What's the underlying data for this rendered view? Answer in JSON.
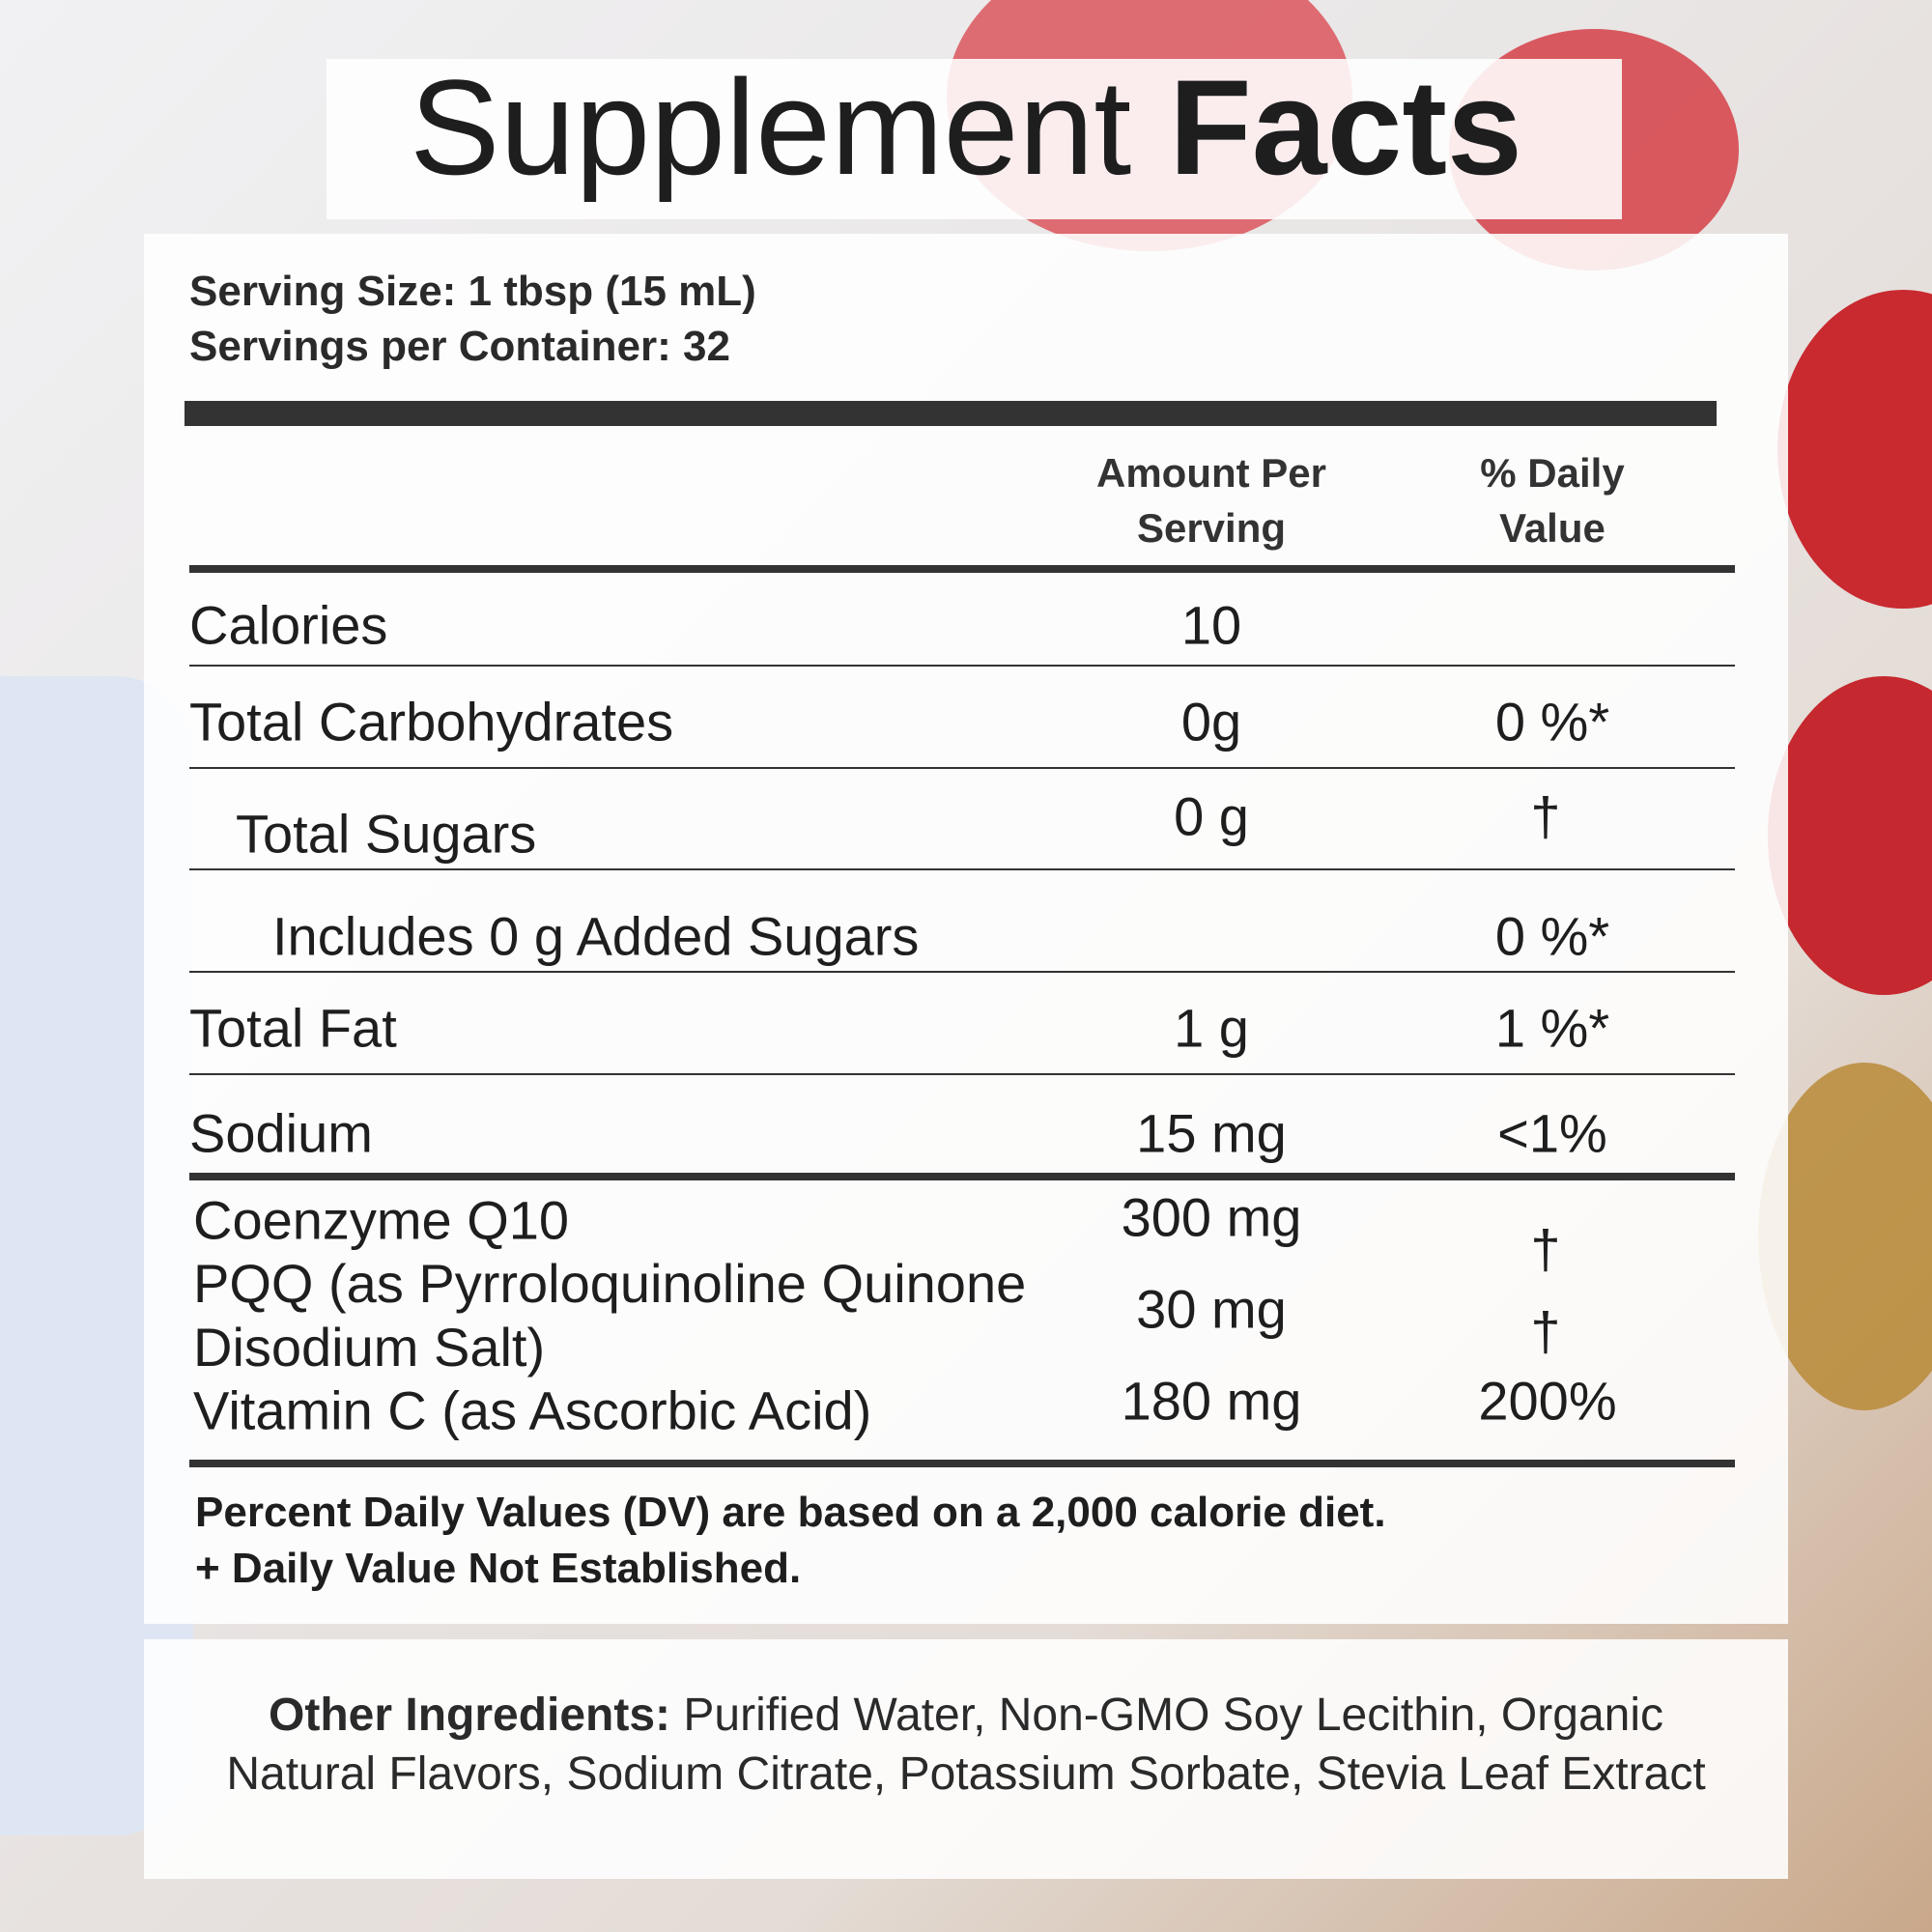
{
  "title": {
    "regular": "Supplement",
    "bold": "Facts"
  },
  "serving_size": "Serving Size: 1 tbsp (15 mL)",
  "servings_per_container": "Servings per Container: 32",
  "table": {
    "headers": [
      "Amount Per Serving",
      "% Daily Value"
    ],
    "rows": [
      {
        "name": "Calories",
        "amount": "10"
      },
      {
        "name": "Total Carbohydrates",
        "amount": "0g",
        "daily_value": "0 %*"
      },
      {
        "name": "Total Sugars",
        "amount": "0 g",
        "daily_value": "†"
      },
      {
        "name": "Includes 0 g Added Sugars",
        "daily_value": "0 %*"
      },
      {
        "name": "Total Fat",
        "amount": "1 g",
        "daily_value": "1 %*"
      },
      {
        "name": "Sodium",
        "amount": "15 mg",
        "daily_value": "<1%"
      },
      {
        "name": "Coenzyme Q10",
        "amount": "300 mg",
        "daily_value": "†"
      },
      {
        "name": "PQQ (as Pyrroloquinoline Quinone Disodium Salt)",
        "amount": "30 mg",
        "daily_value": "†"
      },
      {
        "name": "Vitamin C (as Ascorbic Acid)",
        "amount": "180 mg",
        "daily_value": "200%"
      }
    ]
  },
  "footnotes": [
    "Percent Daily Values (DV) are based on a 2,000 calorie diet.",
    "+ Daily Value Not Established."
  ],
  "other_ingredients": {
    "label": "Other Ingredients:",
    "text": "Purified Water, Non-GMO Soy Lecithin, Organic Natural Flavors, Sodium Citrate, Potassium Sorbate, Stevia Leaf Extract"
  }
}
